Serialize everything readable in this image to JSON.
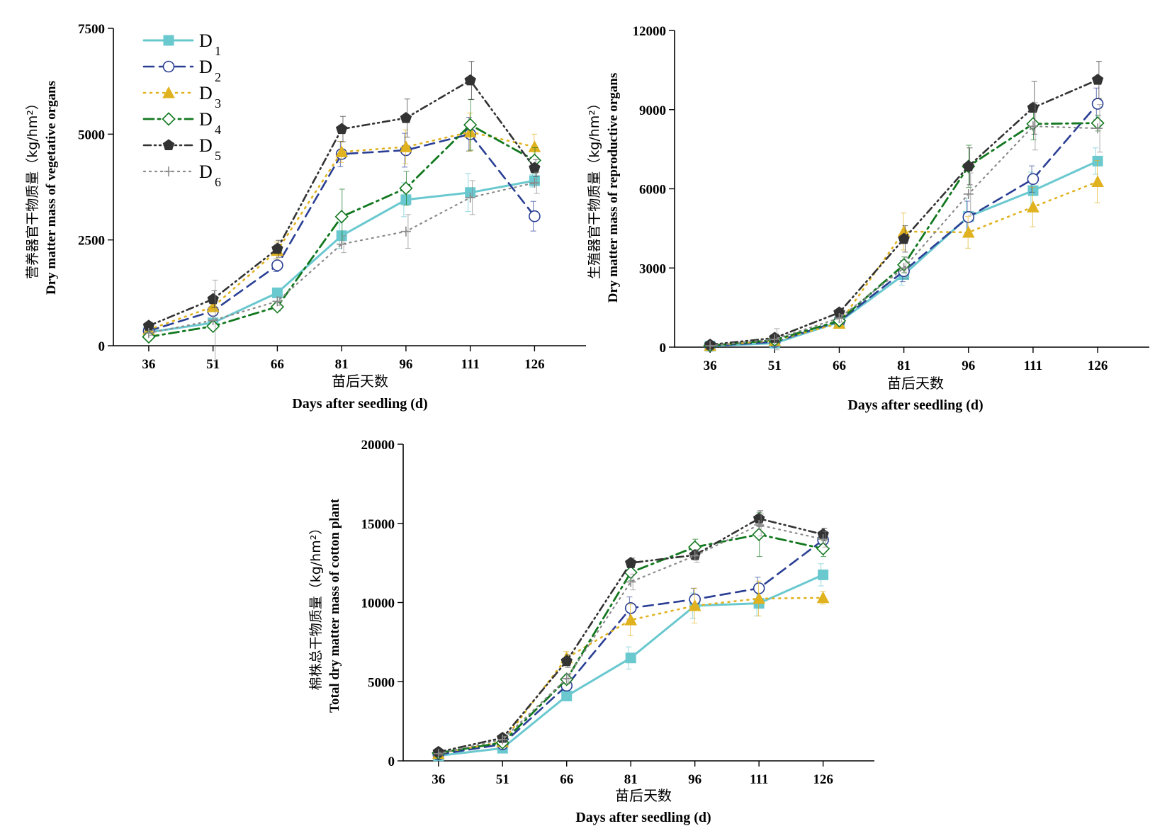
{
  "series_styles": [
    {
      "color": "#6ac8cf",
      "dash": "",
      "marker": "square",
      "width": 3
    },
    {
      "color": "#2a3f94",
      "dash": "14,8",
      "marker": "circle-open",
      "width": 2.6
    },
    {
      "color": "#e0b21f",
      "dash": "2,7",
      "marker": "triangle",
      "width": 2.6
    },
    {
      "color": "#12781f",
      "dash": "14,6,3,6",
      "marker": "diamond-open",
      "width": 2.8
    },
    {
      "color": "#333333",
      "dash": "10,5,2,5,2,5",
      "marker": "pentagon",
      "width": 2.6
    },
    {
      "color": "#8a8a8a",
      "dash": "2,6",
      "marker": "plus",
      "width": 2.2
    }
  ],
  "legend": [
    {
      "main": "D",
      "sub": "1"
    },
    {
      "main": "D",
      "sub": "2"
    },
    {
      "main": "D",
      "sub": "3"
    },
    {
      "main": "D",
      "sub": "4"
    },
    {
      "main": "D",
      "sub": "5"
    },
    {
      "main": "D",
      "sub": "6"
    }
  ],
  "chart_data": [
    {
      "type": "line",
      "ylabel_cn": "营养器官干物质量（kg/hm²）",
      "ylabel_en": "Dry matter mass of vegetative organs",
      "xlabel_cn": "苗后天数",
      "xlabel_en": "Days after seedling (d)",
      "x": [
        36,
        51,
        66,
        81,
        96,
        111,
        126
      ],
      "ylim": [
        0,
        7500
      ],
      "yticks": [
        0,
        2500,
        5000,
        7500
      ],
      "series": [
        {
          "name": "D1",
          "values": [
            320,
            540,
            1250,
            2600,
            3450,
            3620,
            3900
          ],
          "errors": [
            60,
            80,
            100,
            300,
            400,
            450,
            150
          ]
        },
        {
          "name": "D2",
          "values": [
            350,
            820,
            1900,
            4530,
            4620,
            5000,
            3060
          ],
          "errors": [
            60,
            100,
            150,
            300,
            400,
            400,
            350
          ]
        },
        {
          "name": "D3",
          "values": [
            380,
            920,
            2250,
            4580,
            4700,
            5050,
            4700
          ],
          "errors": [
            70,
            120,
            200,
            250,
            400,
            450,
            300
          ]
        },
        {
          "name": "D4",
          "values": [
            210,
            460,
            920,
            3050,
            3720,
            5220,
            4380
          ],
          "errors": [
            50,
            90,
            100,
            650,
            400,
            600,
            300
          ]
        },
        {
          "name": "D5",
          "values": [
            470,
            1100,
            2290,
            5120,
            5380,
            6270,
            4200
          ],
          "errors": [
            80,
            200,
            200,
            300,
            450,
            450,
            200
          ]
        },
        {
          "name": "D6",
          "values": [
            300,
            600,
            1050,
            2400,
            2700,
            3500,
            3850
          ],
          "errors": [
            60,
            950,
            100,
            200,
            400,
            400,
            250
          ]
        }
      ]
    },
    {
      "type": "line",
      "ylabel_cn": "生殖器官干物质量（kg/hm²）",
      "ylabel_en": "Dry matter mass of reproductive organs",
      "xlabel_cn": "苗后天数",
      "xlabel_en": "Days after seedling (d)",
      "x": [
        36,
        51,
        66,
        81,
        96,
        111,
        126
      ],
      "ylim": [
        0,
        12000
      ],
      "yticks": [
        0,
        3000,
        6000,
        9000,
        12000
      ],
      "series": [
        {
          "name": "D1",
          "values": [
            40,
            150,
            950,
            2750,
            4950,
            5930,
            7050
          ],
          "errors": [
            20,
            50,
            100,
            400,
            700,
            700,
            500
          ]
        },
        {
          "name": "D2",
          "values": [
            50,
            200,
            980,
            2880,
            4930,
            6370,
            9220
          ],
          "errors": [
            20,
            80,
            100,
            400,
            600,
            500,
            600
          ]
        },
        {
          "name": "D3",
          "values": [
            60,
            250,
            900,
            4380,
            4350,
            5310,
            6270
          ],
          "errors": [
            20,
            80,
            100,
            700,
            600,
            750,
            800
          ]
        },
        {
          "name": "D4",
          "values": [
            60,
            270,
            1000,
            3120,
            6850,
            8460,
            8490
          ],
          "errors": [
            20,
            100,
            150,
            300,
            800,
            600,
            300
          ]
        },
        {
          "name": "D5",
          "values": [
            90,
            350,
            1310,
            4100,
            6850,
            9070,
            10130
          ],
          "errors": [
            30,
            150,
            150,
            500,
            700,
            1000,
            700
          ]
        },
        {
          "name": "D6",
          "values": [
            50,
            300,
            1100,
            3000,
            5800,
            8370,
            8290
          ],
          "errors": [
            20,
            400,
            150,
            400,
            800,
            900,
            900
          ]
        }
      ]
    },
    {
      "type": "line",
      "ylabel_cn": "棉株总干物质量（kg/hm²）",
      "ylabel_en": "Total dry matter mass of cotton plant",
      "xlabel_cn": "苗后天数",
      "xlabel_en": "Days after seedling (d)",
      "x": [
        36,
        51,
        66,
        81,
        96,
        111,
        126
      ],
      "ylim": [
        0,
        20000
      ],
      "yticks": [
        0,
        5000,
        10000,
        15000,
        20000
      ],
      "series": [
        {
          "name": "D1",
          "values": [
            320,
            800,
            4100,
            6500,
            9800,
            9950,
            11750
          ],
          "errors": [
            80,
            150,
            200,
            700,
            800,
            800,
            700
          ]
        },
        {
          "name": "D2",
          "values": [
            400,
            1050,
            4750,
            9650,
            10200,
            10900,
            13950
          ],
          "errors": [
            80,
            150,
            300,
            700,
            700,
            700,
            500
          ]
        },
        {
          "name": "D3",
          "values": [
            460,
            1200,
            6500,
            8900,
            9800,
            10250,
            10300
          ],
          "errors": [
            80,
            150,
            400,
            1000,
            1100,
            1100,
            400
          ]
        },
        {
          "name": "D4",
          "values": [
            500,
            1150,
            5150,
            11900,
            13500,
            14300,
            13400
          ],
          "errors": [
            90,
            150,
            300,
            500,
            500,
            1400,
            500
          ]
        },
        {
          "name": "D5",
          "values": [
            560,
            1450,
            6300,
            12500,
            13000,
            15300,
            14300
          ],
          "errors": [
            90,
            200,
            400,
            300,
            300,
            500,
            400
          ]
        },
        {
          "name": "D6",
          "values": [
            450,
            1350,
            5200,
            11300,
            12950,
            14900,
            14000
          ],
          "errors": [
            90,
            200,
            300,
            500,
            400,
            700,
            500
          ]
        }
      ]
    }
  ]
}
